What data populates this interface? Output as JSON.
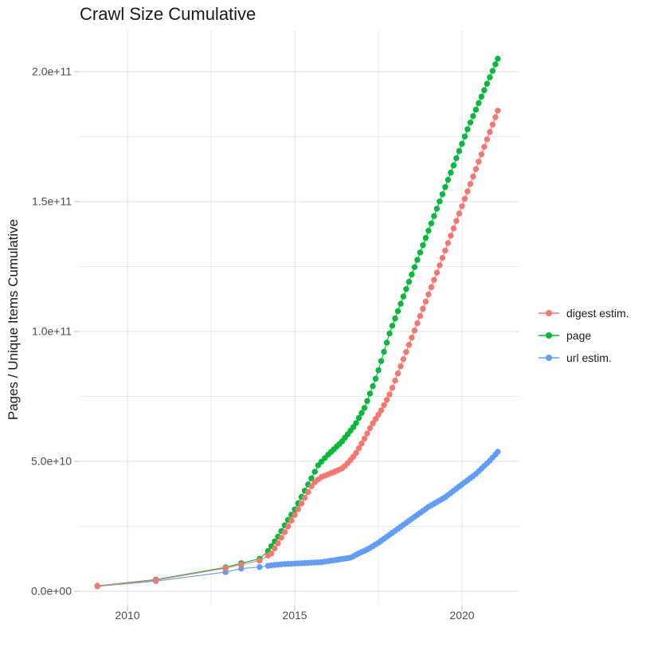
{
  "title": "Crawl Size Cumulative",
  "y_axis": {
    "title": "Pages / Unique Items Cumulative",
    "tick_labels": [
      "0.0e+00",
      "5.0e+10",
      "1.0e+11",
      "1.5e+11",
      "2.0e+11"
    ],
    "tick_values_e9": [
      0,
      50,
      100,
      150,
      200
    ],
    "minor_values_e9": [
      25,
      75,
      125,
      175
    ]
  },
  "x_axis": {
    "tick_labels": [
      "2010",
      "2015",
      "2020"
    ],
    "tick_values": [
      2010,
      2015,
      2020
    ],
    "minor_values": [
      2012.5,
      2017.5
    ]
  },
  "chart_data": {
    "type": "scatter",
    "title": "Crawl Size Cumulative",
    "xlabel": "",
    "ylabel": "Pages / Unique Items Cumulative",
    "x_range": [
      2008.6,
      2021.7
    ],
    "y_range_e9": [
      0,
      216
    ],
    "grid": true,
    "legend_position": "right",
    "unit": "cumulative count; value_e9 = billions of items",
    "x_sampling": {
      "discrete": [
        2009.1,
        2010.85,
        2012.93,
        2013.4,
        2013.95,
        2021.07
      ],
      "ranges": [
        {
          "from": 2014.2,
          "to": 2016.0,
          "step": 0.1
        },
        {
          "from": 2016.083,
          "to": 2021.03,
          "step": 0.0833
        }
      ]
    },
    "series": [
      {
        "name": "digest estim.",
        "color": "#F8766D",
        "waypoints_year_value_e9": [
          [
            2009.1,
            2.0
          ],
          [
            2010.85,
            4.3
          ],
          [
            2012.93,
            8.9
          ],
          [
            2013.4,
            10.3
          ],
          [
            2013.95,
            11.8
          ],
          [
            2014.3,
            14.5
          ],
          [
            2014.55,
            19.5
          ],
          [
            2014.8,
            25.0
          ],
          [
            2015.05,
            30.5
          ],
          [
            2015.3,
            36.0
          ],
          [
            2015.55,
            41.5
          ],
          [
            2015.8,
            44.0
          ],
          [
            2016.1,
            45.5
          ],
          [
            2016.45,
            47.5
          ],
          [
            2016.8,
            52.5
          ],
          [
            2017.05,
            58.0
          ],
          [
            2017.3,
            64.0
          ],
          [
            2017.6,
            70.0
          ],
          [
            2017.86,
            76.5
          ],
          [
            2018.57,
            100.0
          ],
          [
            2019.2,
            121.0
          ],
          [
            2020.05,
            150.0
          ],
          [
            2021.07,
            185.0
          ]
        ]
      },
      {
        "name": "page",
        "color": "#00BA38",
        "waypoints_year_value_e9": [
          [
            2009.1,
            2.1
          ],
          [
            2010.85,
            4.5
          ],
          [
            2012.93,
            9.2
          ],
          [
            2013.4,
            10.8
          ],
          [
            2013.95,
            12.5
          ],
          [
            2014.2,
            15.5
          ],
          [
            2014.5,
            21.0
          ],
          [
            2014.75,
            26.5
          ],
          [
            2015.0,
            31.5
          ],
          [
            2015.25,
            37.5
          ],
          [
            2015.5,
            43.5
          ],
          [
            2015.7,
            48.5
          ],
          [
            2015.95,
            52.0
          ],
          [
            2016.4,
            57.5
          ],
          [
            2016.8,
            64.0
          ],
          [
            2017.1,
            71.0
          ],
          [
            2017.45,
            83.0
          ],
          [
            2017.85,
            100.0
          ],
          [
            2018.5,
            122.0
          ],
          [
            2019.33,
            150.0
          ],
          [
            2020.2,
            179.0
          ],
          [
            2021.07,
            205.0
          ]
        ]
      },
      {
        "name": "url estim.",
        "color": "#619CFF",
        "waypoints_year_value_e9": [
          [
            2009.1,
            1.9
          ],
          [
            2010.85,
            3.9
          ],
          [
            2012.93,
            7.4
          ],
          [
            2013.4,
            8.7
          ],
          [
            2013.95,
            9.3
          ],
          [
            2014.3,
            10.0
          ],
          [
            2014.7,
            10.5
          ],
          [
            2015.2,
            10.8
          ],
          [
            2015.8,
            11.2
          ],
          [
            2016.2,
            12.0
          ],
          [
            2016.7,
            13.0
          ],
          [
            2016.85,
            14.2
          ],
          [
            2017.2,
            16.3
          ],
          [
            2017.5,
            18.7
          ],
          [
            2018.0,
            23.3
          ],
          [
            2018.5,
            27.9
          ],
          [
            2019.0,
            32.5
          ],
          [
            2019.5,
            36.2
          ],
          [
            2019.9,
            40.2
          ],
          [
            2020.4,
            45.0
          ],
          [
            2020.85,
            50.5
          ],
          [
            2021.07,
            53.7
          ]
        ]
      }
    ]
  },
  "style": {
    "grid_major_color": "#e5e5e5",
    "grid_minor_color": "#ebebeb",
    "tick_mark_color": "#c9c9c9",
    "text_color": "#4d4d4d"
  }
}
